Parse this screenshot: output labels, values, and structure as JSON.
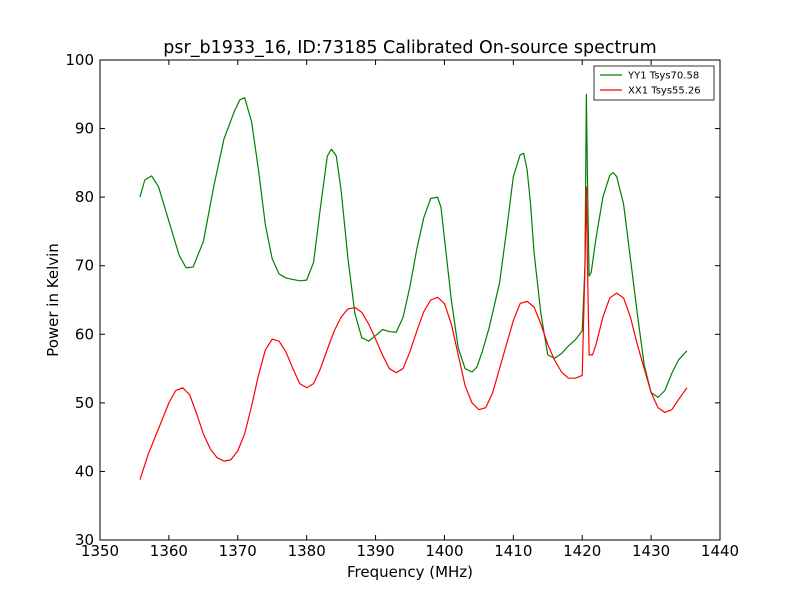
{
  "chart_data": {
    "type": "line",
    "title": "psr_b1933_16, ID:73185 Calibrated On-source spectrum",
    "xlabel": "Frequency (MHz)",
    "ylabel": "Power in Kelvin",
    "xlim": [
      1350,
      1440
    ],
    "ylim": [
      30,
      100
    ],
    "xticks": [
      1350,
      1360,
      1370,
      1380,
      1390,
      1400,
      1410,
      1420,
      1430,
      1440
    ],
    "yticks": [
      30,
      40,
      50,
      60,
      70,
      80,
      90,
      100
    ],
    "grid": false,
    "legend_position": "top-right",
    "series": [
      {
        "name": "YY1 Tsys70.58",
        "color": "#008000",
        "x": [
          1355.8,
          1356.5,
          1357.5,
          1358.5,
          1360,
          1361.5,
          1362.5,
          1363.5,
          1365,
          1366.5,
          1368,
          1369.5,
          1370.3,
          1371,
          1372,
          1373,
          1374,
          1375,
          1376,
          1377,
          1378,
          1379,
          1380,
          1381,
          1382,
          1383,
          1383.6,
          1384.3,
          1385,
          1386,
          1387,
          1388,
          1389,
          1390,
          1391,
          1392,
          1393,
          1394,
          1395,
          1396,
          1397,
          1398,
          1399,
          1399.5,
          1400,
          1401,
          1402,
          1403,
          1404,
          1404.7,
          1405.5,
          1406.5,
          1408,
          1409,
          1410,
          1411,
          1411.5,
          1412,
          1412.5,
          1413,
          1414,
          1415,
          1416,
          1417,
          1418,
          1419,
          1420,
          1420.4,
          1420.6,
          1420.8,
          1421,
          1421.3,
          1422,
          1423,
          1424,
          1424.5,
          1425,
          1426,
          1427,
          1428,
          1429,
          1430,
          1431,
          1432,
          1433,
          1434,
          1435.2
        ],
        "y": [
          80,
          82.5,
          83.1,
          81.5,
          76.5,
          71.5,
          69.7,
          69.8,
          73.5,
          81.5,
          88.5,
          92.5,
          94.2,
          94.5,
          91,
          84,
          76,
          71,
          68.8,
          68.2,
          68,
          67.8,
          67.9,
          70.5,
          78.5,
          86,
          87,
          86,
          81,
          71,
          63,
          59.5,
          59,
          59.8,
          60.7,
          60.4,
          60.3,
          62.5,
          67,
          72.5,
          77,
          79.8,
          80,
          78.5,
          74,
          65,
          58,
          55,
          54.5,
          55.2,
          57.5,
          61,
          67.5,
          75,
          83,
          86.2,
          86.4,
          84,
          79,
          72,
          63,
          57,
          56.5,
          57.2,
          58.3,
          59.2,
          60.5,
          70,
          95,
          80,
          68.5,
          69,
          74,
          80,
          83.2,
          83.6,
          83,
          79,
          71,
          63,
          55.5,
          51.5,
          50.8,
          51.8,
          54.3,
          56.3,
          57.6
        ]
      },
      {
        "name": "XX1 Tsys55.26",
        "color": "#ff0000",
        "x": [
          1355.8,
          1357,
          1358,
          1359,
          1360,
          1361,
          1362,
          1363,
          1364,
          1365,
          1366,
          1367,
          1368,
          1369,
          1370,
          1371,
          1372,
          1373,
          1374,
          1375,
          1376,
          1377,
          1378,
          1379,
          1380,
          1381,
          1382,
          1383,
          1384,
          1385,
          1386,
          1387,
          1388,
          1389,
          1390,
          1391,
          1392,
          1393,
          1394,
          1395,
          1396,
          1397,
          1398,
          1399,
          1400,
          1401,
          1402,
          1403,
          1404,
          1405,
          1406,
          1407,
          1408,
          1409,
          1410,
          1411,
          1412,
          1413,
          1414,
          1415,
          1416,
          1417,
          1418,
          1419,
          1420,
          1420.4,
          1420.6,
          1420.8,
          1421,
          1421.5,
          1422,
          1423,
          1424,
          1425,
          1426,
          1427,
          1428,
          1429,
          1430,
          1431,
          1432,
          1433,
          1434,
          1435.2
        ],
        "y": [
          38.8,
          42.5,
          45,
          47.5,
          50,
          51.8,
          52.2,
          51.2,
          48.5,
          45.5,
          43.3,
          42,
          41.5,
          41.7,
          43,
          45.5,
          49.5,
          54,
          57.7,
          59.3,
          59,
          57.4,
          55,
          52.8,
          52.2,
          52.8,
          55,
          57.8,
          60.5,
          62.5,
          63.7,
          63.9,
          63.2,
          61.5,
          59.3,
          57,
          55,
          54.4,
          55,
          57.5,
          60.5,
          63.3,
          65,
          65.4,
          64.5,
          61.5,
          57,
          52.5,
          50,
          49,
          49.3,
          51.5,
          55,
          58.5,
          62,
          64.5,
          64.8,
          64,
          61.5,
          58.5,
          56.2,
          54.5,
          53.6,
          53.6,
          54,
          70,
          81.5,
          68,
          57,
          57,
          58.5,
          62.5,
          65.3,
          66,
          65.3,
          62.5,
          58.5,
          55,
          51.5,
          49.3,
          48.6,
          49,
          50.5,
          52.2
        ]
      }
    ]
  }
}
